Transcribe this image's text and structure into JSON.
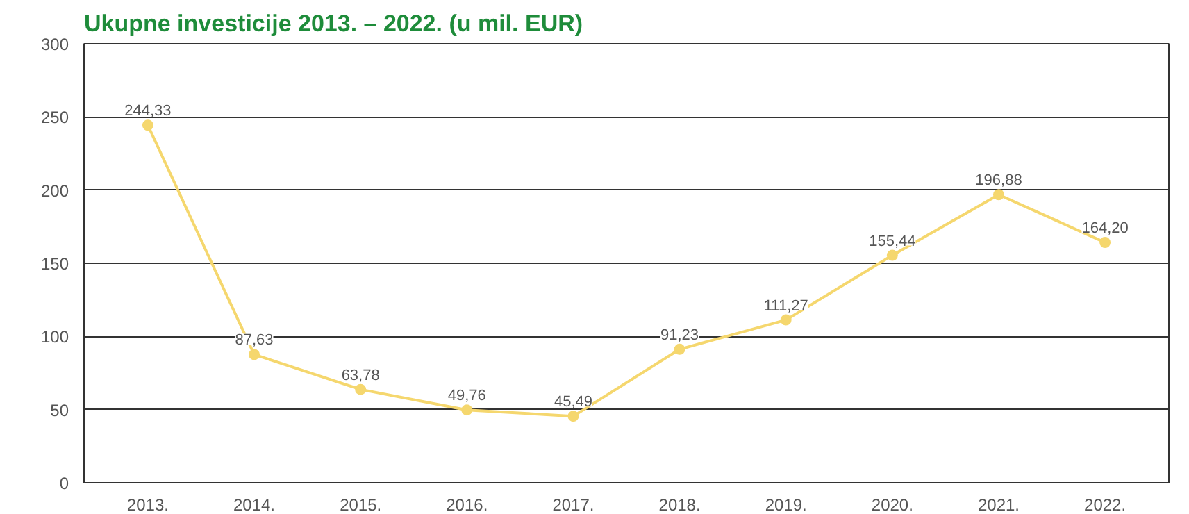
{
  "chart_data": {
    "type": "line",
    "title": "Ukupne investicije 2013. – 2022. (u mil. EUR)",
    "categories": [
      "2013.",
      "2014.",
      "2015.",
      "2016.",
      "2017.",
      "2018.",
      "2019.",
      "2020.",
      "2021.",
      "2022."
    ],
    "series": [
      {
        "color": "#f5d76e",
        "values": [
          244.33,
          87.63,
          63.78,
          49.76,
          45.49,
          91.23,
          111.27,
          155.44,
          196.88,
          164.2
        ],
        "value_labels": [
          "244,33",
          "87,63",
          "63,78",
          "49,76",
          "45,49",
          "91,23",
          "111,27",
          "155,44",
          "196,88",
          "164,20"
        ]
      }
    ],
    "ylim": [
      0,
      300
    ],
    "yticks": [
      0,
      50,
      100,
      150,
      200,
      250,
      300
    ],
    "grid": "y",
    "marker": "circle",
    "line_style": "solid"
  }
}
